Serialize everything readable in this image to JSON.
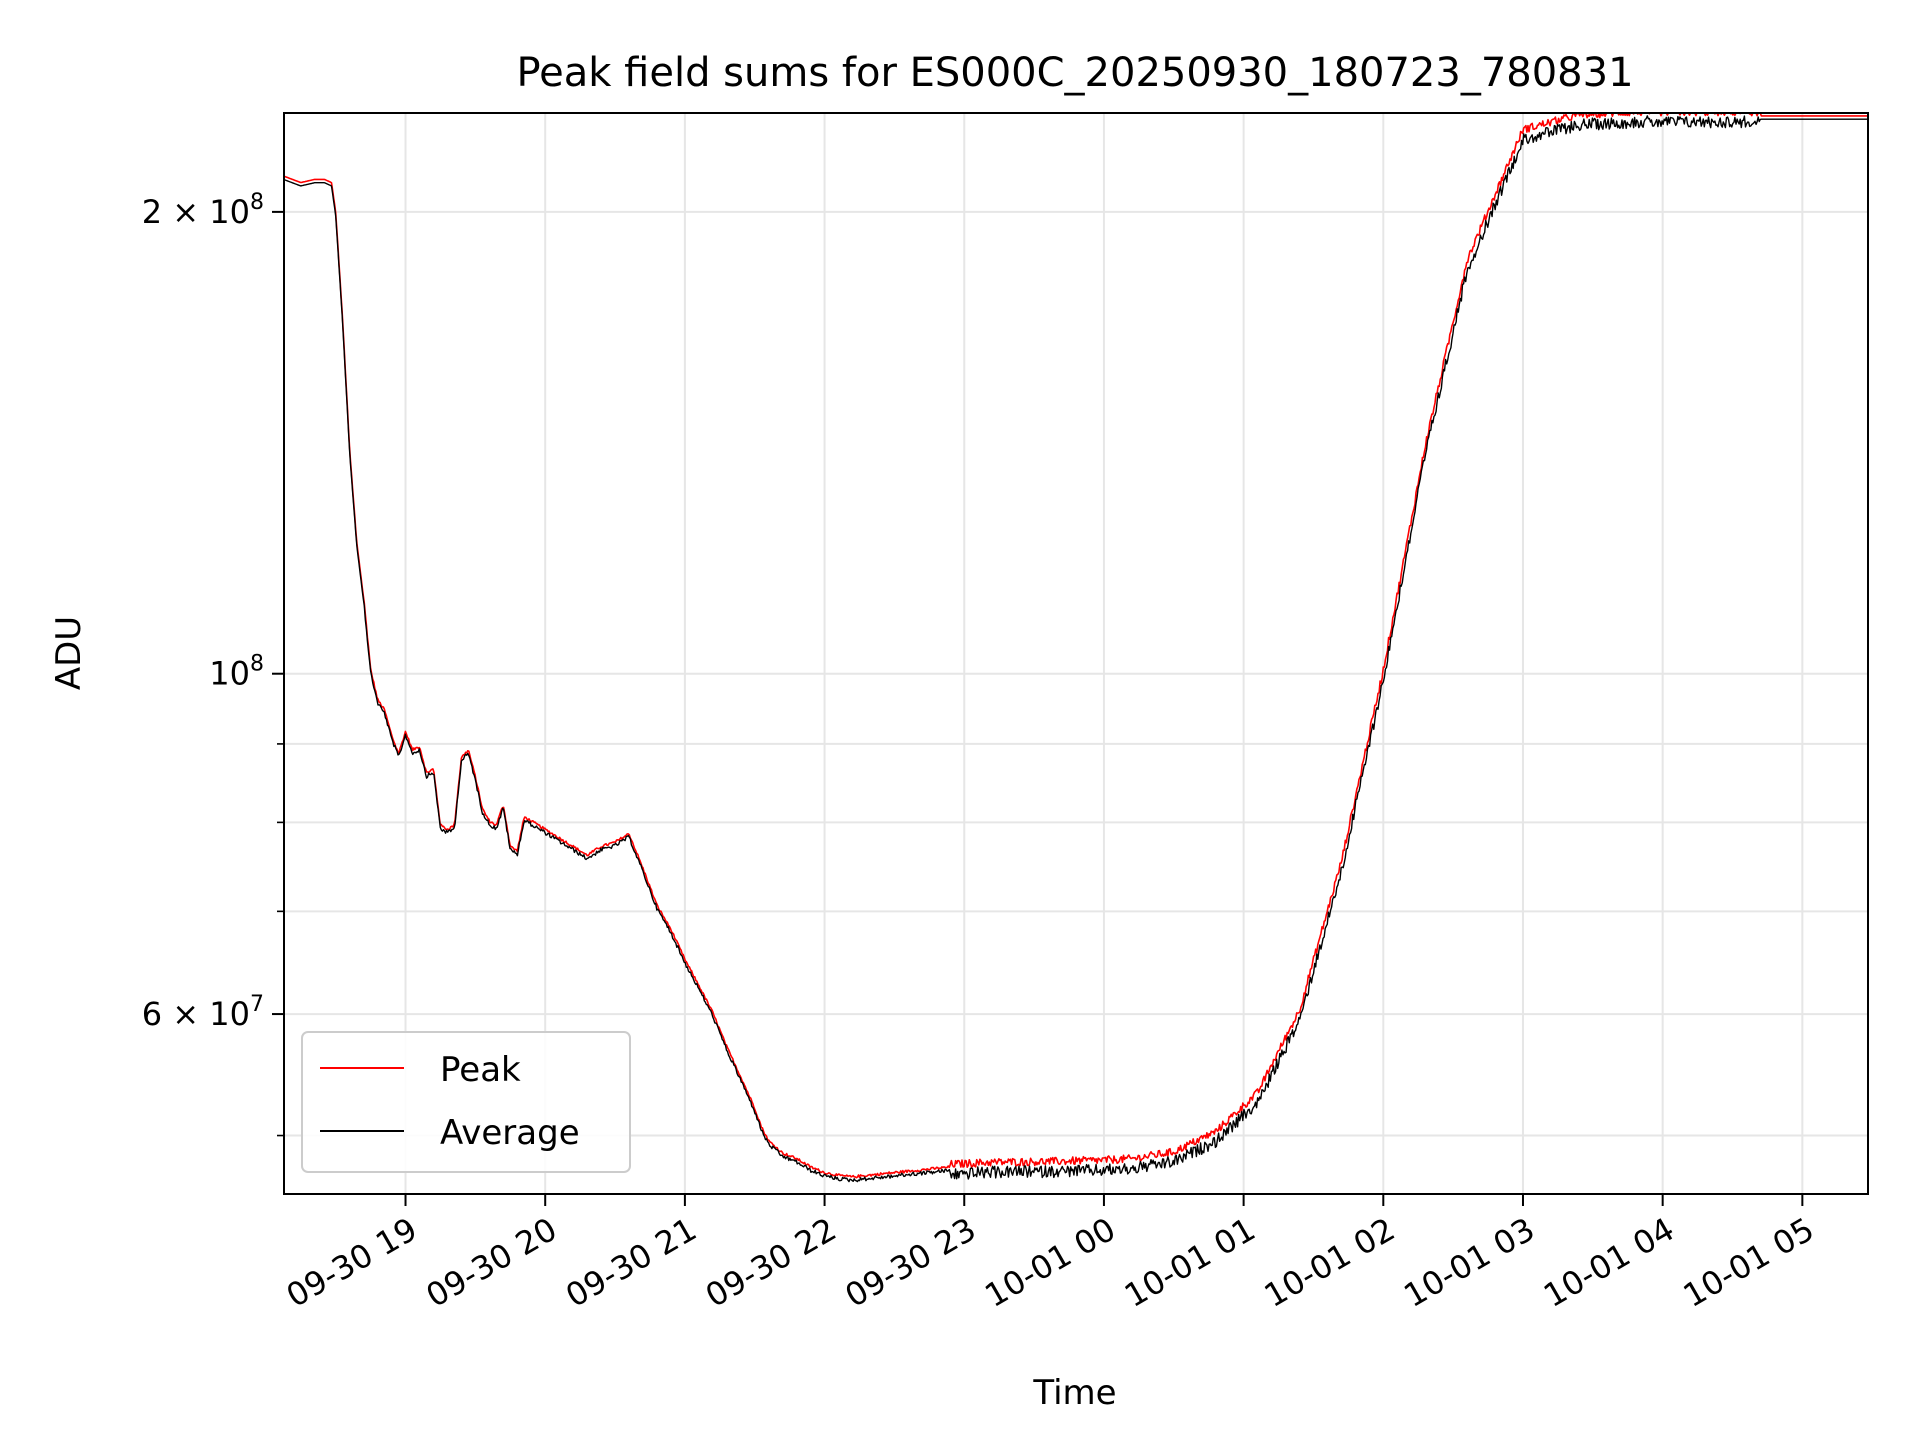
{
  "chart_data": {
    "type": "line",
    "title": "Peak field sums for ES000C_20250930_180723_780831",
    "xlabel": "Time",
    "ylabel": "ADU",
    "yscale": "log",
    "xlim_hours": [
      -0.87,
      10.47
    ],
    "ylim": [
      45800000,
      232000000
    ],
    "x_reference": "09-30 19:00",
    "x_ticks": [
      {
        "hour": 0,
        "label": "09-30 19"
      },
      {
        "hour": 1,
        "label": "09-30 20"
      },
      {
        "hour": 2,
        "label": "09-30 21"
      },
      {
        "hour": 3,
        "label": "09-30 22"
      },
      {
        "hour": 4,
        "label": "09-30 23"
      },
      {
        "hour": 5,
        "label": "10-01 00"
      },
      {
        "hour": 6,
        "label": "10-01 01"
      },
      {
        "hour": 7,
        "label": "10-01 02"
      },
      {
        "hour": 8,
        "label": "10-01 03"
      },
      {
        "hour": 9,
        "label": "10-01 04"
      },
      {
        "hour": 10,
        "label": "10-01 05"
      }
    ],
    "y_major_ticks": [
      {
        "value": 100000000,
        "base": "10",
        "exp": "8",
        "coef": ""
      },
      {
        "value": 200000000,
        "base": "10",
        "exp": "8",
        "coef": "2"
      },
      {
        "value": 60000000,
        "base": "10",
        "exp": "7",
        "coef": "6"
      }
    ],
    "y_minor_ticks": [
      50000000,
      70000000,
      80000000,
      90000000
    ],
    "legend_location": "lower-left",
    "series": [
      {
        "name": "Peak",
        "color": "#ff0000",
        "x": [
          -0.87,
          -0.75,
          -0.65,
          -0.58,
          -0.53,
          -0.5,
          -0.45,
          -0.4,
          -0.35,
          -0.3,
          -0.25,
          -0.2,
          -0.15,
          -0.1,
          -0.05,
          0,
          0.05,
          0.1,
          0.15,
          0.2,
          0.25,
          0.3,
          0.35,
          0.4,
          0.45,
          0.5,
          0.55,
          0.6,
          0.65,
          0.7,
          0.75,
          0.8,
          0.85,
          0.9,
          0.95,
          1.0,
          1.05,
          1.1,
          1.15,
          1.2,
          1.3,
          1.4,
          1.5,
          1.6,
          1.7,
          1.8,
          1.9,
          2.0,
          2.1,
          2.2,
          2.3,
          2.4,
          2.5,
          2.55,
          2.6,
          2.7,
          2.8,
          2.9,
          3.0,
          3.1,
          3.2,
          3.3,
          3.4,
          3.5,
          3.6,
          3.7,
          3.8,
          3.9,
          4.0,
          4.1,
          4.2,
          4.4,
          4.6,
          4.8,
          5.0,
          5.2,
          5.5,
          5.8,
          6.1,
          6.4,
          6.7,
          7.0,
          7.3,
          7.6,
          8.0,
          8.4,
          8.8,
          9.0,
          9.2,
          9.4,
          9.5,
          9.55,
          9.6,
          9.7,
          9.8,
          9.9,
          10.0,
          10.1,
          10.2,
          10.3,
          10.47
        ],
        "y": [
          211000000,
          209000000,
          210000000,
          210000000,
          209000000,
          200000000,
          170000000,
          140000000,
          122000000,
          112000000,
          100500000,
          96000000,
          94500000,
          91000000,
          88500000,
          91500000,
          89000000,
          89500000,
          86000000,
          86500000,
          79500000,
          79000000,
          79500000,
          88000000,
          89000000,
          85500000,
          81500000,
          80000000,
          79500000,
          82000000,
          77000000,
          76500000,
          80500000,
          80000000,
          79500000,
          79000000,
          78500000,
          78000000,
          77500000,
          77000000,
          76000000,
          77000000,
          77500000,
          78500000,
          74500000,
          70500000,
          68000000,
          65000000,
          62500000,
          60000000,
          57000000,
          54500000,
          52000000,
          50500000,
          49500000,
          48600000,
          48200000,
          47600000,
          47200000,
          47000000,
          46900000,
          47000000,
          47100000,
          47200000,
          47300000,
          47400000,
          47500000,
          47600000,
          47650000,
          47700000,
          47750000,
          47780000,
          47800000,
          47850000,
          47900000,
          48000000,
          48500000,
          50000000,
          53000000,
          60000000,
          75000000,
          100000000,
          140000000,
          185000000,
          225000000,
          230000000,
          231000000,
          231000000,
          231000000,
          231000000,
          231000000,
          231000000,
          231000000,
          231000000,
          231000000,
          231000000,
          231000000,
          231000000,
          231000000,
          231000000,
          231000000
        ]
      },
      {
        "name": "Average",
        "color": "#000000",
        "x": [],
        "y": []
      }
    ]
  }
}
